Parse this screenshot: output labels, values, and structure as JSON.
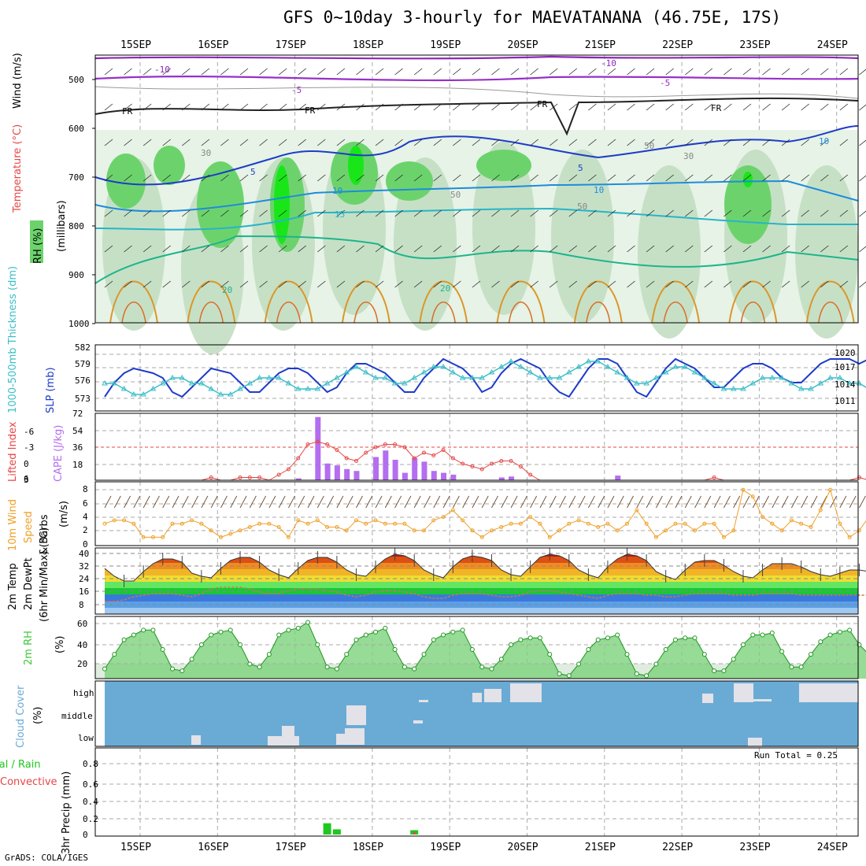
{
  "title": "GFS 0~10day 3-hourly for MAEVATANANA (46.75E, 17S)",
  "footer": "GrADS: COLA/IGES",
  "dates": [
    "15SEP",
    "16SEP",
    "17SEP",
    "18SEP",
    "19SEP",
    "20SEP",
    "21SEP",
    "22SEP",
    "23SEP",
    "24SEP"
  ],
  "colors": {
    "rh_light": "#e6f3e6",
    "rh_mid": "#c0dcc0",
    "rh_dark": "#a8c8a8",
    "rh_green": "#6cd36c",
    "rh_bright": "#19e619",
    "slp": "#1e3cc8",
    "thick": "#3cbec8",
    "cape": "#b46ef0",
    "li": "#e64646",
    "wind_speed": "#f0a028",
    "wind_barb": "#6e4628",
    "rh2m": "#3cc83c",
    "cloud_blue": "#6aabd5",
    "cloud_white": "#f4f0f8",
    "precip_total": "#1ec81e",
    "precip_conv": "#e64646"
  },
  "panels": {
    "upper": {
      "labels": {
        "rh": "RH (%)",
        "temp": "Temperature (°C)",
        "wind": "Wind (m/s)",
        "unit": "(millibars)"
      },
      "yticks": [
        "500",
        "600",
        "700",
        "800",
        "900",
        "1000"
      ],
      "contour_labels": {
        "neg10": "-10",
        "neg5": "-5",
        "fr": "FR",
        "pos5": "5",
        "pos10": "10",
        "pos15": "15",
        "pos20": "20",
        "rh30": "30",
        "rh50": "50"
      }
    },
    "slp": {
      "labels": {
        "thick": "1000-500mb Thickness (dm)",
        "slp": "SLP (mb)"
      },
      "left_ticks": [
        "582",
        "579",
        "576",
        "573"
      ],
      "right_ticks": [
        "1020",
        "1017",
        "1014",
        "1011"
      ]
    },
    "cape": {
      "labels": {
        "li": "Lifted Index",
        "cape": "CAPE (J/kg)"
      },
      "left_ticks": [
        "-6",
        "-3",
        "0",
        "3",
        "6"
      ],
      "right_ticks": [
        "72",
        "54",
        "36",
        "18"
      ]
    },
    "wind10m": {
      "labels": {
        "a": "10m Wind",
        "b": "Speed",
        "c": "& Barbs",
        "unit": "(m/s)"
      },
      "ticks": [
        "8",
        "6",
        "4",
        "2",
        "0"
      ]
    },
    "temp2m": {
      "labels": {
        "a": "2m Temp",
        "b": "2m DewPt",
        "c": "(6hr Min/Max) (°C)"
      },
      "ticks": [
        "40",
        "32",
        "24",
        "16",
        "8"
      ]
    },
    "rh2m": {
      "labels": {
        "a": "2m RH",
        "unit": "(%)"
      },
      "ticks": [
        "60",
        "40",
        "20"
      ]
    },
    "cloud": {
      "labels": {
        "a": "Cloud Cover",
        "unit": "(%)"
      },
      "levels": [
        "high",
        "middle",
        "low"
      ]
    },
    "precip": {
      "labels": {
        "a": "Total / Rain",
        "b": "Convective",
        "c": "3hr Precip (mm)"
      },
      "ticks": [
        "0.8",
        "0.6",
        "0.4",
        "0.2",
        "0"
      ],
      "run_total": "Run Total = 0.25"
    }
  },
  "chart_data": [
    {
      "type": "line",
      "title": "SLP (mb)",
      "x_unit": "3-hourly steps from 14SEP 12Z",
      "ylim": [
        1008,
        1022
      ],
      "values": [
        1011,
        1014,
        1016,
        1017,
        1016.5,
        1016,
        1015,
        1012,
        1011,
        1013,
        1015,
        1017,
        1016.5,
        1016,
        1014,
        1012,
        1012,
        1014,
        1016,
        1017,
        1017,
        1016,
        1014,
        1012,
        1013,
        1016,
        1018,
        1018,
        1017,
        1016,
        1014,
        1012,
        1012,
        1015,
        1017,
        1019,
        1018,
        1017,
        1015,
        1012,
        1013,
        1016,
        1018,
        1019,
        1018,
        1017,
        1014,
        1012,
        1011,
        1014,
        1017,
        1019,
        1019,
        1018,
        1015,
        1012,
        1011,
        1014,
        1017,
        1019,
        1018,
        1017,
        1015,
        1013,
        1013,
        1015,
        1017,
        1018,
        1018,
        1017,
        1015,
        1014,
        1014,
        1016,
        1018,
        1019,
        1019,
        1019,
        1018,
        1019,
        1020,
        1021
      ]
    },
    {
      "type": "line",
      "title": "1000-500mb Thickness (dm)",
      "ylim": [
        571,
        583
      ],
      "values": [
        576,
        576,
        575,
        574,
        574,
        575,
        576,
        577,
        577,
        576,
        576,
        575,
        574,
        574,
        575,
        576,
        577,
        577,
        577,
        576,
        575,
        575,
        575,
        576,
        577,
        578,
        579,
        578,
        577,
        577,
        576,
        576,
        577,
        578,
        579,
        579,
        578,
        577,
        577,
        577,
        578,
        579,
        580,
        579,
        578,
        577,
        577,
        577,
        578,
        579,
        580,
        580,
        579,
        578,
        577,
        576,
        576,
        577,
        578,
        579,
        579,
        578,
        577,
        576,
        575,
        575,
        575,
        576,
        577,
        577,
        577,
        576,
        575,
        575,
        576,
        577,
        577,
        576,
        576,
        575,
        576,
        577
      ]
    },
    {
      "type": "bar",
      "title": "CAPE (J/kg)",
      "ylim": [
        0,
        72
      ],
      "values": [
        0,
        0,
        0,
        0,
        0,
        0,
        0,
        0,
        0,
        0,
        0,
        0,
        0,
        0,
        0,
        0,
        0,
        0,
        0,
        0,
        2,
        0,
        68,
        18,
        16,
        12,
        10,
        0,
        25,
        32,
        22,
        8,
        24,
        20,
        10,
        8,
        6,
        0,
        0,
        0,
        0,
        3,
        4,
        0,
        0,
        0,
        0,
        0,
        0,
        0,
        0,
        0,
        0,
        5,
        0,
        0,
        0,
        0,
        0,
        0,
        0,
        0,
        0,
        0,
        0,
        0,
        0,
        0,
        0,
        0,
        0,
        0,
        0,
        0,
        0,
        0,
        0,
        0,
        0,
        0,
        0,
        0
      ]
    },
    {
      "type": "line",
      "title": "Lifted Index",
      "ylim": [
        6,
        -6
      ],
      "values": [
        6,
        6,
        6,
        6,
        6,
        6,
        6,
        6,
        6,
        6,
        6,
        5.5,
        6,
        6,
        5.5,
        5.5,
        5.5,
        6,
        5,
        4,
        2,
        -0.5,
        -1,
        -0.5,
        0.5,
        2,
        2.5,
        1,
        0,
        -0.5,
        -0.5,
        0,
        2,
        1,
        1.5,
        0.5,
        2,
        3,
        3.5,
        4,
        3,
        2.5,
        2.5,
        3.5,
        5,
        6,
        6,
        6,
        6,
        6,
        6,
        6,
        6,
        6,
        6,
        6,
        6,
        6,
        6,
        6,
        6,
        6,
        6,
        5.5,
        6,
        6,
        6,
        6,
        6,
        6,
        6,
        6,
        6,
        6,
        6,
        6,
        6,
        6,
        5.5,
        6,
        6,
        6
      ]
    },
    {
      "type": "line",
      "title": "10m Wind Speed (m/s)",
      "ylim": [
        0,
        9
      ],
      "values": [
        3,
        3.5,
        3.5,
        3,
        1,
        1,
        1,
        3,
        3,
        3.5,
        3,
        2,
        1,
        1.5,
        2,
        2.5,
        3,
        3,
        2.5,
        1,
        3.5,
        3,
        3.5,
        2.5,
        2.5,
        2,
        3.5,
        3,
        3.5,
        3,
        3,
        3,
        2,
        2,
        3.5,
        4,
        5,
        3.5,
        2,
        1,
        2,
        2.5,
        3,
        3,
        4,
        3,
        1,
        2,
        3,
        3.5,
        3,
        2.5,
        3,
        2,
        3,
        5,
        3,
        1,
        2,
        3,
        3,
        2,
        3,
        3,
        1,
        2,
        8,
        7,
        4,
        3,
        2,
        3.5,
        3,
        2.5,
        5,
        8,
        3,
        1,
        2,
        4,
        3,
        3
      ]
    },
    {
      "type": "area",
      "title": "2m Temp (°C)",
      "ylim": [
        0,
        42
      ],
      "values": [
        29,
        24,
        21,
        21,
        27,
        32,
        35,
        35,
        33,
        26,
        24,
        23,
        29,
        34,
        36,
        36,
        33,
        28,
        25,
        23,
        29,
        34,
        36,
        36,
        33,
        28,
        25,
        24,
        30,
        35,
        38,
        37,
        34,
        28,
        25,
        23,
        30,
        35,
        37,
        36,
        34,
        28,
        25,
        24,
        30,
        36,
        38,
        37,
        34,
        28,
        25,
        23,
        30,
        35,
        38,
        37,
        34,
        27,
        24,
        22,
        28,
        33,
        34,
        34,
        31,
        27,
        24,
        23,
        28,
        32,
        32,
        32,
        30,
        27,
        25,
        24,
        26,
        28,
        28,
        27,
        26,
        28
      ]
    },
    {
      "type": "line",
      "title": "2m DewPt (°C)",
      "values": [
        8,
        8,
        9,
        11,
        12,
        13,
        13,
        13,
        12,
        11,
        13,
        16,
        17,
        17,
        17,
        16,
        14,
        13,
        13,
        15,
        16,
        16,
        16,
        15,
        14,
        12,
        11,
        12,
        14,
        15,
        15,
        14,
        13,
        11,
        10,
        10,
        12,
        13,
        13,
        13,
        12,
        11,
        11,
        12,
        14,
        15,
        15,
        14,
        13,
        12,
        11,
        10,
        12,
        13,
        13,
        13,
        12,
        12,
        11,
        11,
        12,
        13,
        13,
        13,
        13,
        12,
        12,
        12,
        13,
        13,
        13,
        13,
        12,
        12,
        12,
        12,
        12,
        12,
        12,
        12,
        11,
        11
      ]
    },
    {
      "type": "area",
      "title": "2m RH (%)",
      "ylim": [
        10,
        70
      ],
      "values": [
        20,
        35,
        50,
        55,
        60,
        60,
        40,
        20,
        18,
        30,
        45,
        55,
        58,
        60,
        45,
        25,
        22,
        35,
        55,
        60,
        62,
        68,
        45,
        22,
        20,
        35,
        50,
        55,
        58,
        62,
        40,
        22,
        20,
        35,
        50,
        55,
        58,
        60,
        40,
        22,
        20,
        30,
        45,
        50,
        52,
        52,
        35,
        15,
        13,
        25,
        40,
        50,
        52,
        55,
        35,
        15,
        13,
        25,
        40,
        50,
        52,
        52,
        35,
        18,
        18,
        30,
        45,
        55,
        55,
        57,
        38,
        22,
        22,
        35,
        48,
        55,
        58,
        60,
        45,
        35,
        38,
        40
      ]
    },
    {
      "type": "bar",
      "title": "3hr Precip (mm)",
      "ylim": [
        0,
        1
      ],
      "series": [
        {
          "name": "Total",
          "index": [
            23,
            24,
            32
          ],
          "values": [
            0.13,
            0.06,
            0.05
          ]
        },
        {
          "name": "Convective",
          "index": [
            32
          ],
          "values": [
            0.03
          ]
        }
      ]
    }
  ]
}
